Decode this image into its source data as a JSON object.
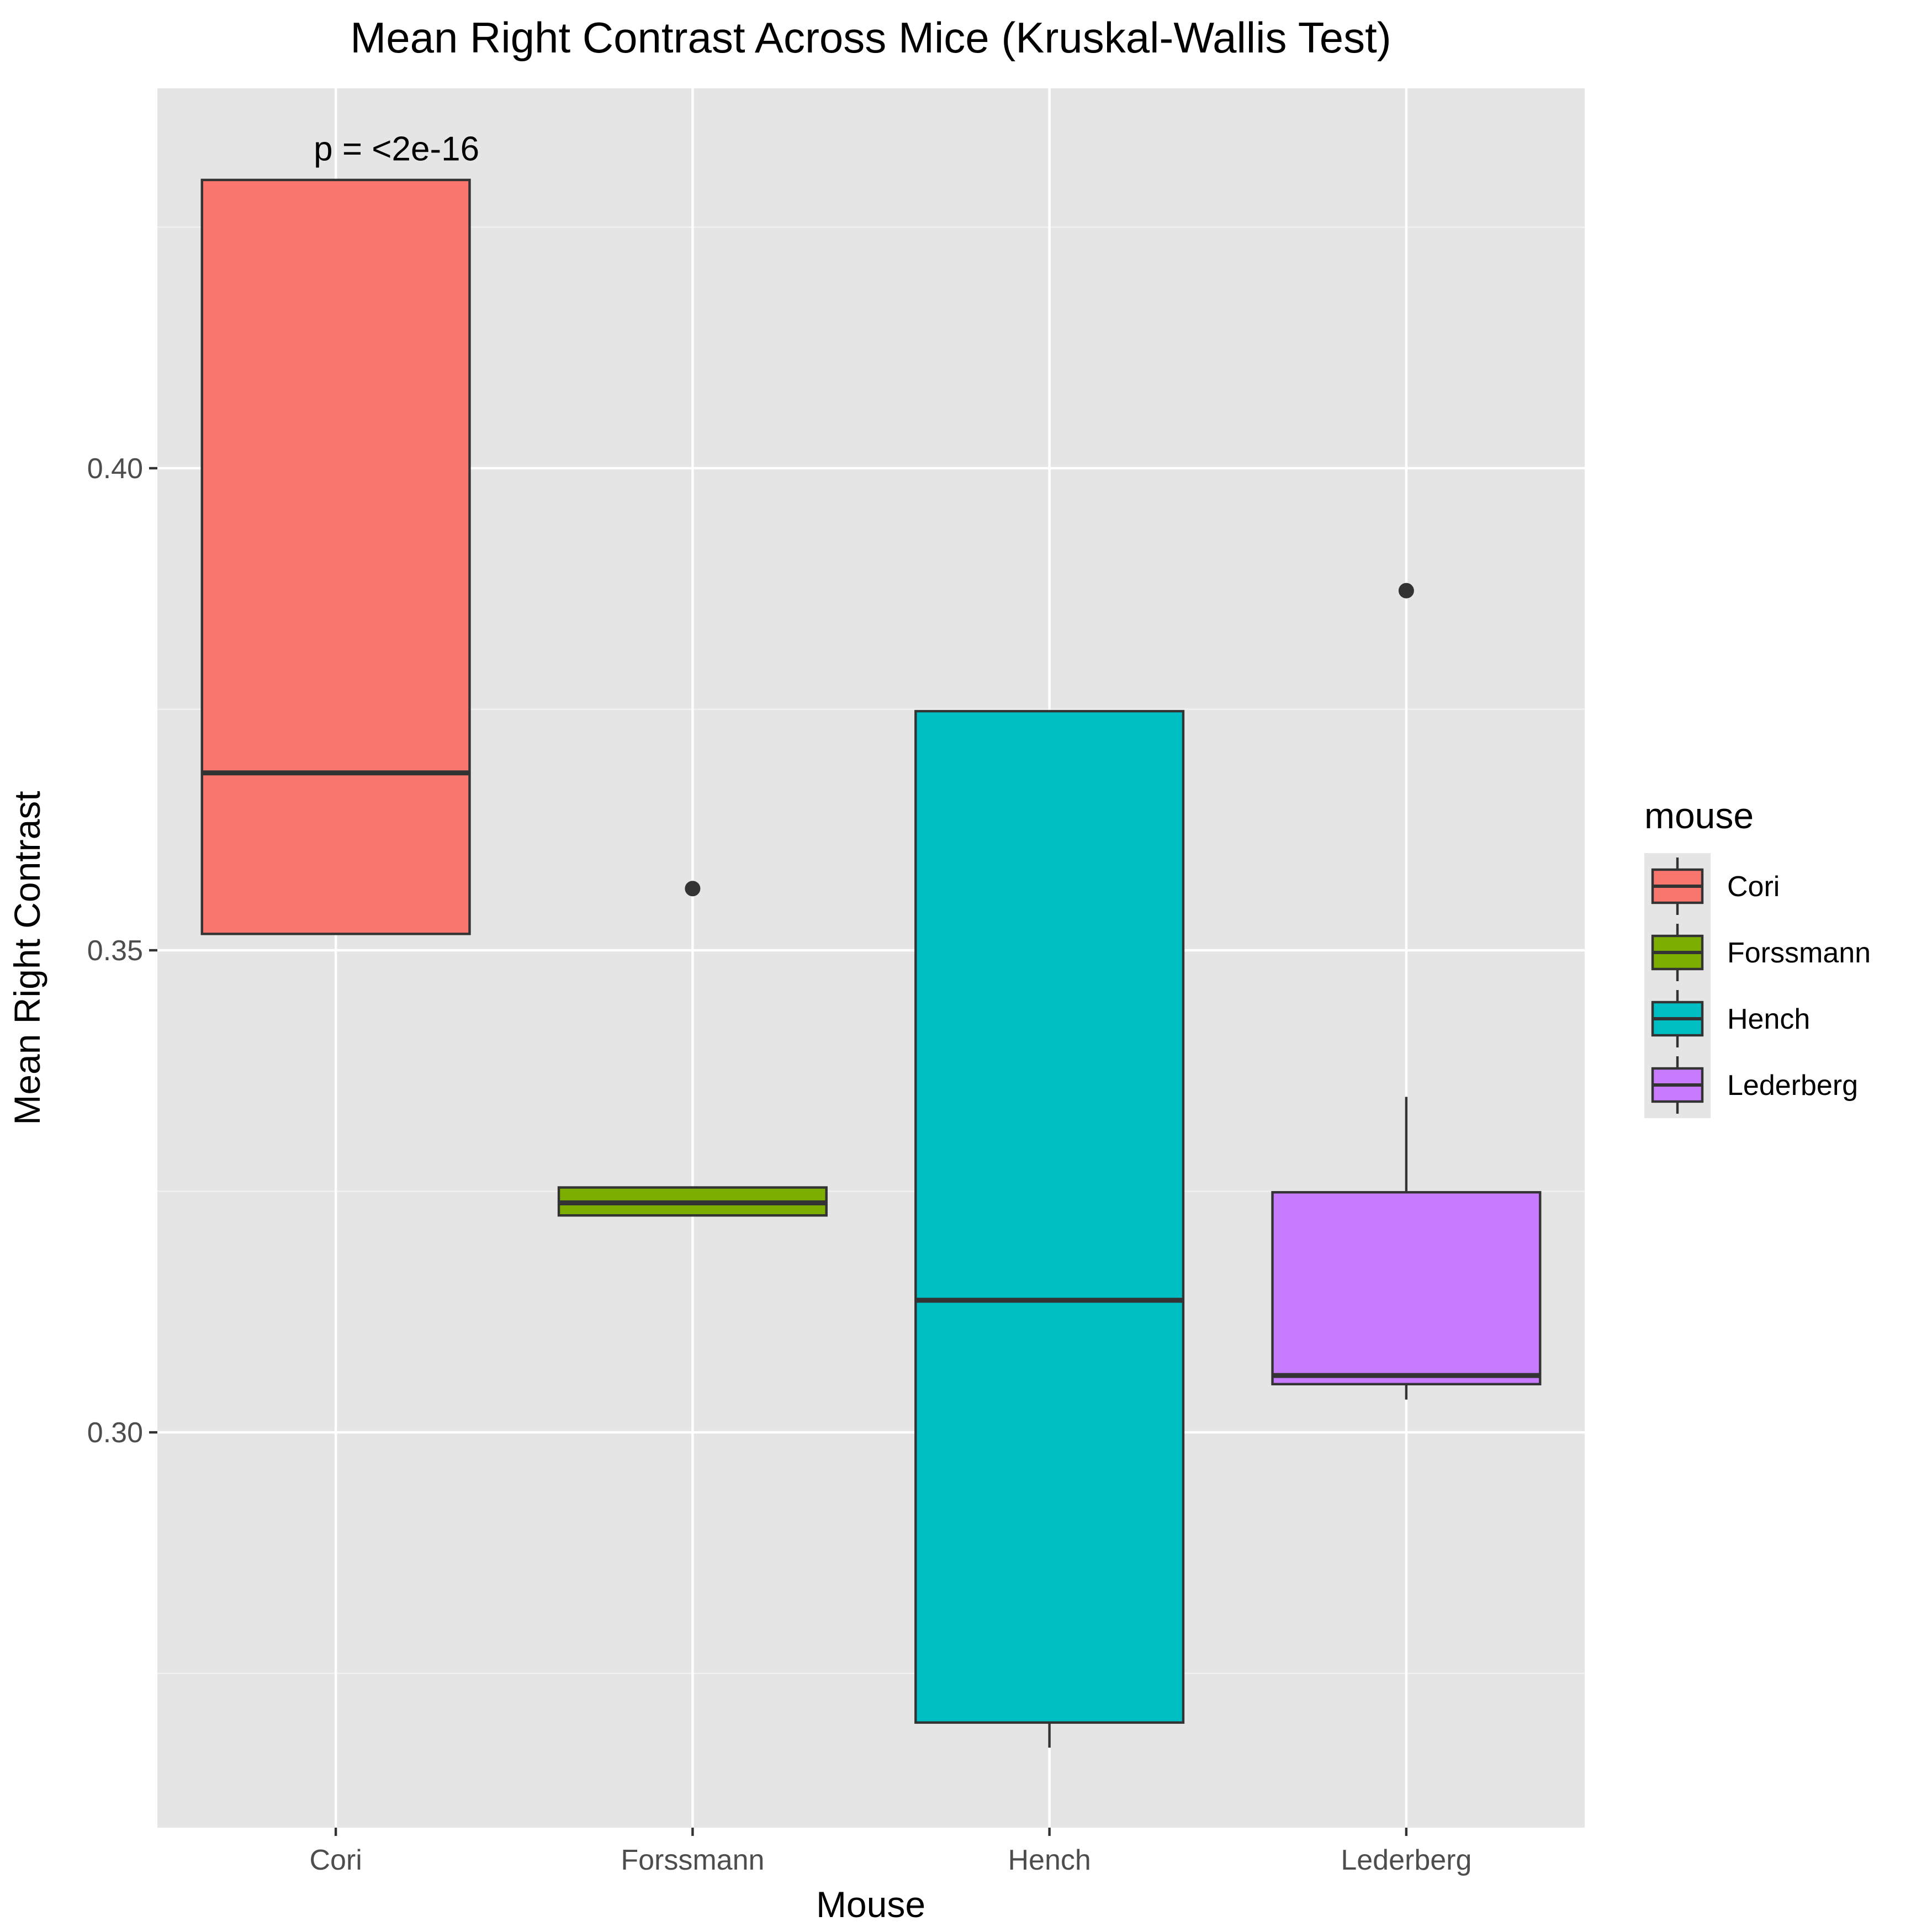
{
  "chart_data": {
    "type": "boxplot",
    "title": "Mean Right Contrast Across Mice (Kruskal-Wallis Test)",
    "xlabel": "Mouse",
    "ylabel": "Mean Right Contrast",
    "ylim": [
      0.259,
      0.4394
    ],
    "yticks": [
      0.3,
      0.35,
      0.4
    ],
    "ytick_labels": [
      "0.30",
      "0.35",
      "0.40"
    ],
    "grid": true,
    "legend_position": "right",
    "legend_title": "mouse",
    "annotation": {
      "text": "p = <2e-16",
      "x": "Cori",
      "y": 0.4325
    },
    "categories": [
      "Cori",
      "Forssmann",
      "Hench",
      "Lederberg"
    ],
    "boxes": [
      {
        "name": "Cori",
        "color": "#F8766D",
        "whisker_low": 0.3517,
        "q1": 0.3517,
        "median": 0.3684,
        "q3": 0.4299,
        "whisker_high": 0.4299,
        "outliers": []
      },
      {
        "name": "Forssmann",
        "color": "#7CAE00",
        "whisker_low": 0.3225,
        "q1": 0.3225,
        "median": 0.3238,
        "q3": 0.3254,
        "whisker_high": 0.3254,
        "outliers": [
          0.3564
        ]
      },
      {
        "name": "Hench",
        "color": "#00BFC4",
        "whisker_low": 0.2673,
        "q1": 0.2699,
        "median": 0.3137,
        "q3": 0.3748,
        "whisker_high": 0.3748,
        "outliers": []
      },
      {
        "name": "Lederberg",
        "color": "#C77CFF",
        "whisker_low": 0.3034,
        "q1": 0.305,
        "median": 0.3059,
        "q3": 0.3249,
        "whisker_high": 0.3348,
        "outliers": [
          0.3873
        ]
      }
    ]
  }
}
